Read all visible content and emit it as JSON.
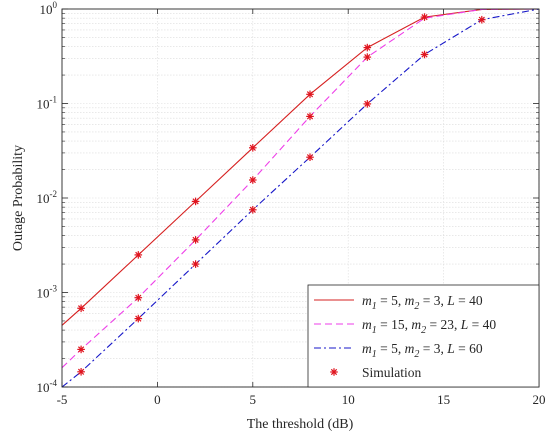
{
  "chart_data": {
    "type": "line",
    "xlabel": "The threshold  (dB)",
    "ylabel": "Outage Probability",
    "xlim": [
      -5,
      20
    ],
    "ylim": [
      0.0001,
      1
    ],
    "yscale": "log",
    "grid": true,
    "legend_position": "bottom-right",
    "xticks": [
      -5,
      0,
      5,
      10,
      15,
      20
    ],
    "xtick_labels": [
      "-5",
      "0",
      "5",
      "10",
      "15",
      "20"
    ],
    "yticks": [
      0.0001,
      0.001,
      0.01,
      0.1,
      1
    ],
    "ytick_labels": [
      {
        "base": "10",
        "exp": "-4"
      },
      {
        "base": "10",
        "exp": "-3"
      },
      {
        "base": "10",
        "exp": "-2"
      },
      {
        "base": "10",
        "exp": "-1"
      },
      {
        "base": "10",
        "exp": "0"
      }
    ],
    "series": [
      {
        "name": "m1 = 5,  m2 = 3,  L = 40",
        "legend": {
          "a": "m",
          "a_sub": "1",
          "b": " = 5,  ",
          "c": "m",
          "c_sub": "2",
          "d": " = 3,  ",
          "e": "L",
          "f": " = 40"
        },
        "color": "#d62020",
        "style": "solid",
        "x": [
          -5,
          -4,
          -1,
          2,
          5,
          8,
          11,
          14,
          17,
          20
        ],
        "y": [
          0.00045,
          0.00068,
          0.0025,
          0.0092,
          0.034,
          0.125,
          0.39,
          0.82,
          0.99,
          1.0
        ]
      },
      {
        "name": "m1 = 15,  m2 = 23,  L = 40",
        "legend": {
          "a": "m",
          "a_sub": "1",
          "b": " = 15,  ",
          "c": "m",
          "c_sub": "2",
          "d": " = 23,  ",
          "e": "L",
          "f": " = 40"
        },
        "color": "#ee3ee8",
        "style": "dashed",
        "x": [
          -5,
          -4,
          -1,
          2,
          5,
          8,
          11,
          14,
          17,
          20
        ],
        "y": [
          0.00016,
          0.00025,
          0.00088,
          0.0036,
          0.0155,
          0.073,
          0.31,
          0.8,
          0.99,
          1.0
        ]
      },
      {
        "name": "m1 = 5,  m2 = 3,  L = 60",
        "legend": {
          "a": "m",
          "a_sub": "1",
          "b": " = 5,  ",
          "c": "m",
          "c_sub": "2",
          "d": " = 3,  ",
          "e": "L",
          "f": " = 60"
        },
        "color": "#1717c8",
        "style": "dashdot",
        "x": [
          -5,
          -4,
          -1,
          2,
          5,
          8,
          11,
          14,
          17,
          20
        ],
        "y": [
          0.0001,
          0.000145,
          0.00053,
          0.002,
          0.0075,
          0.027,
          0.099,
          0.33,
          0.77,
          1.0
        ]
      }
    ],
    "simulation": {
      "name": "Simulation",
      "color": "#e0141e",
      "points": [
        [
          -4,
          0.00068
        ],
        [
          -1,
          0.0025
        ],
        [
          2,
          0.0092
        ],
        [
          5,
          0.034
        ],
        [
          8,
          0.125
        ],
        [
          11,
          0.39
        ],
        [
          14,
          0.82
        ],
        [
          17,
          0.77
        ],
        [
          -4,
          0.00025
        ],
        [
          -1,
          0.00088
        ],
        [
          2,
          0.0036
        ],
        [
          5,
          0.0155
        ],
        [
          8,
          0.073
        ],
        [
          11,
          0.31
        ],
        [
          -4,
          0.000145
        ],
        [
          -1,
          0.00053
        ],
        [
          2,
          0.002
        ],
        [
          5,
          0.0075
        ],
        [
          8,
          0.027
        ],
        [
          11,
          0.099
        ],
        [
          14,
          0.33
        ]
      ]
    }
  }
}
